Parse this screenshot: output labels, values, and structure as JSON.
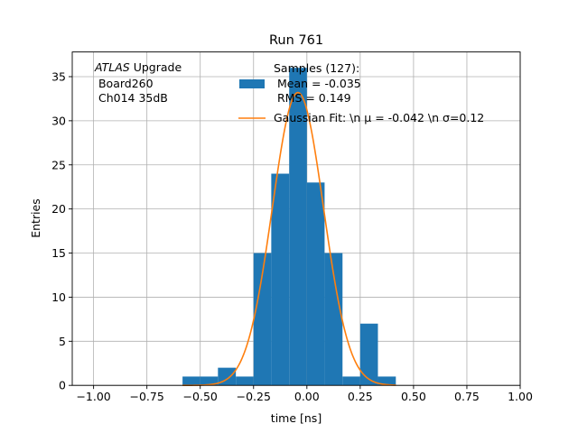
{
  "chart_data": {
    "type": "bar",
    "title": "Run 761",
    "xlabel": "time [ns]",
    "ylabel": "Entries",
    "xlim": [
      -1.1,
      1.0
    ],
    "ylim": [
      0,
      37.8
    ],
    "grid": true,
    "xticks": [
      -1.0,
      -0.75,
      -0.5,
      -0.25,
      0.0,
      0.25,
      0.5,
      0.75,
      1.0
    ],
    "xtick_labels": [
      "−1.00",
      "−0.75",
      "−0.50",
      "−0.25",
      "0.00",
      "0.25",
      "0.50",
      "0.75",
      "1.00"
    ],
    "yticks": [
      0,
      5,
      10,
      15,
      20,
      25,
      30,
      35
    ],
    "ytick_labels": [
      "0",
      "5",
      "10",
      "15",
      "20",
      "25",
      "30",
      "35"
    ],
    "annotation": {
      "italic": "ATLAS",
      "suffix": " Upgrade",
      "line2": " Board260",
      "line3": " Ch014 35dB"
    },
    "legend": {
      "placement": "top-right",
      "histogram_lines": [
        "Samples (127):",
        " Mean = -0.035",
        " RMS = 0.149"
      ],
      "fit_label": "Gaussian Fit: \\n μ = -0.042 \\n σ=0.12"
    },
    "histogram": {
      "name": "Samples (127):",
      "color": "#1f77b4",
      "bin_edges": [
        -0.583,
        -0.5,
        -0.417,
        -0.333,
        -0.25,
        -0.167,
        -0.083,
        0.0,
        0.083,
        0.167,
        0.25,
        0.333,
        0.417
      ],
      "counts": [
        1,
        1,
        2,
        1,
        15,
        24,
        36,
        23,
        15,
        1,
        7,
        1
      ]
    },
    "fit": {
      "name": "Gaussian Fit",
      "color": "#ff7f0e",
      "mu": -0.042,
      "sigma": 0.12,
      "amplitude": 33.2,
      "x_range": [
        -0.583,
        0.417
      ]
    }
  }
}
